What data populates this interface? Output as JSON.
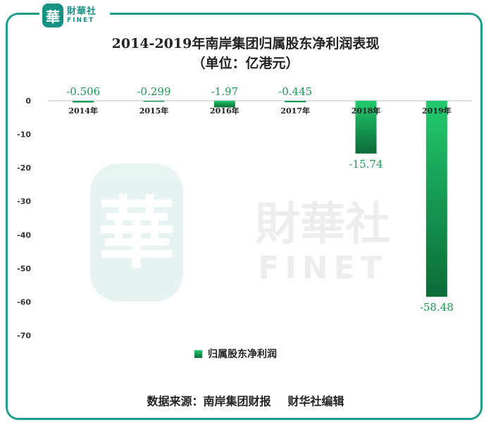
{
  "brand": {
    "seal": "華",
    "name_cn": "財華社",
    "name_en": "FINET"
  },
  "chart_data": {
    "type": "bar",
    "title": "2014-2019年南岸集团归属股东净利润表现",
    "subtitle": "（单位：亿港元）",
    "categories": [
      "2014年",
      "2015年",
      "2016年",
      "2017年",
      "2018年",
      "2019年"
    ],
    "series": [
      {
        "name": "归属股东净利润",
        "values": [
          -0.506,
          -0.299,
          -1.97,
          -0.445,
          -15.74,
          -58.48
        ]
      }
    ],
    "value_labels": [
      "-0.506",
      "-0.299",
      "-1.97",
      "-0.445",
      "-15.74",
      "-58.48"
    ],
    "ylim": [
      -70,
      0
    ],
    "yticks": [
      0,
      -10,
      -20,
      -30,
      -40,
      -50,
      -60,
      -70
    ],
    "grid": false,
    "legend": "bottom",
    "colors": {
      "bar_top": "#22c96d",
      "bar_bottom": "#0c6b37",
      "label": "#1c9a52",
      "frame": "#1e9e8c"
    }
  },
  "footer": {
    "source": "数据来源：南岸集团财报",
    "editor": "财华社编辑"
  }
}
